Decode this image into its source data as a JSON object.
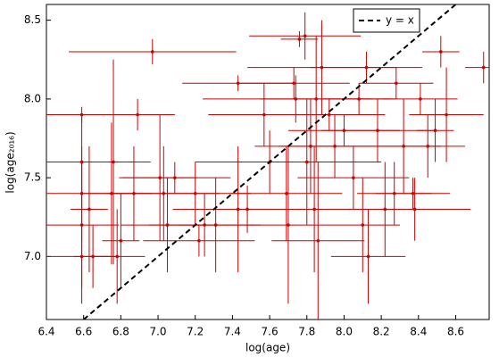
{
  "chart_data": {
    "type": "scatter",
    "x_label": "log(age)",
    "y_label": "log(age₂₀₁₆)",
    "xlim": [
      6.4,
      8.78
    ],
    "ylim": [
      6.6,
      8.6
    ],
    "xticks": [
      6.4,
      6.6,
      6.8,
      {
        "value": 7.0,
        "label": "7.0"
      },
      7.2,
      7.4,
      7.6,
      7.8,
      {
        "value": 8.0,
        "label": "8.0"
      },
      8.2,
      8.4,
      8.6
    ],
    "yticks": [
      {
        "value": 7.0,
        "label": "7.0"
      },
      7.5,
      {
        "value": 8.0,
        "label": "8.0"
      },
      8.5
    ],
    "legend": "upper right",
    "series": [
      {
        "type": "errorbar",
        "color": "#cc0000",
        "x": [
          6.59,
          6.59,
          6.59,
          6.59,
          6.59,
          6.63,
          6.65,
          6.75,
          6.76,
          6.78,
          6.8,
          6.87,
          6.89,
          6.97,
          7.01,
          7.03,
          7.05,
          7.09,
          7.2,
          7.22,
          7.25,
          7.31,
          7.43,
          7.43,
          7.48,
          7.57,
          7.6,
          7.69,
          7.7,
          7.73,
          7.74,
          7.76,
          7.79,
          7.8,
          7.82,
          7.84,
          7.85,
          7.86,
          7.88,
          7.92,
          7.95,
          8.0,
          8.05,
          8.08,
          8.1,
          8.12,
          8.13,
          8.18,
          8.22,
          8.27,
          8.28,
          8.32,
          8.37,
          8.38,
          8.41,
          8.45,
          8.49,
          8.52,
          8.55,
          8.75
        ],
        "values": [
          7.9,
          7.6,
          7.4,
          7.2,
          7.0,
          7.3,
          7.0,
          7.4,
          7.6,
          7.0,
          7.1,
          7.4,
          7.9,
          8.3,
          7.5,
          7.4,
          7.2,
          7.5,
          7.4,
          7.1,
          7.2,
          7.2,
          8.1,
          7.3,
          7.3,
          7.9,
          7.6,
          7.4,
          7.2,
          8.1,
          8.0,
          8.38,
          8.4,
          7.6,
          7.7,
          7.3,
          8.0,
          7.1,
          8.2,
          7.9,
          7.7,
          7.8,
          7.5,
          8.0,
          7.2,
          8.2,
          7.0,
          7.8,
          7.3,
          7.4,
          8.1,
          7.7,
          7.4,
          7.3,
          8.0,
          7.7,
          7.8,
          8.3,
          7.9,
          8.2
        ],
        "xerr": [
          0.22,
          0.2,
          0.2,
          0.2,
          0.2,
          0.1,
          0.1,
          0.15,
          0.2,
          0.15,
          0.1,
          0.1,
          0.2,
          0.45,
          0.2,
          0.3,
          0.25,
          0.3,
          0.3,
          0.3,
          0.3,
          0.2,
          0.3,
          0.2,
          0.4,
          0.3,
          0.4,
          0.3,
          0.2,
          0.3,
          0.5,
          0.1,
          0.3,
          0.4,
          0.3,
          0.3,
          0.3,
          0.25,
          0.4,
          0.3,
          0.3,
          0.3,
          0.3,
          0.2,
          0.2,
          0.3,
          0.2,
          0.3,
          0.3,
          0.2,
          0.2,
          0.2,
          0.2,
          0.3,
          0.2,
          0.2,
          0.1,
          0.1,
          0.2,
          0.1
        ],
        "yerr": [
          0.05,
          0.3,
          0.3,
          0.4,
          0.3,
          0.4,
          0.2,
          0.45,
          0.65,
          0.3,
          0.3,
          0.3,
          0.1,
          0.08,
          0.4,
          0.3,
          0.3,
          0.1,
          0.2,
          0.1,
          0.2,
          0.3,
          0.05,
          0.4,
          0.15,
          0.2,
          0.2,
          0.3,
          0.5,
          0.1,
          0.15,
          0.05,
          0.15,
          0.4,
          0.3,
          0.4,
          0.4,
          0.5,
          0.3,
          0.1,
          0.2,
          0.1,
          0.2,
          0.1,
          0.3,
          0.1,
          0.3,
          0.2,
          0.3,
          0.2,
          0.1,
          0.3,
          0.1,
          0.2,
          0.1,
          0.2,
          0.2,
          0.1,
          0.3,
          0.1
        ]
      },
      {
        "type": "line",
        "name": "y = x",
        "color": "#000000",
        "dashed": true,
        "x": [
          6.6,
          8.6
        ],
        "values": [
          6.6,
          8.6
        ]
      }
    ]
  }
}
